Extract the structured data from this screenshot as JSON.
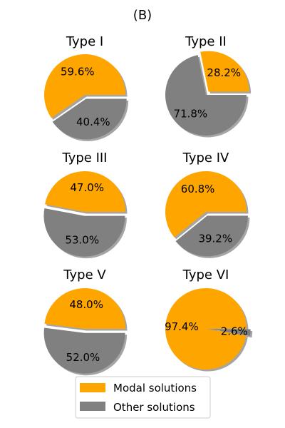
{
  "chart_data": {
    "type": "pie",
    "title": "(B)",
    "colors": {
      "modal": "#FFA500",
      "other": "#808080",
      "shadow": "#7f7f7f",
      "legend_border": "#cccccc"
    },
    "legend": {
      "placement": "bottom-center",
      "entries": [
        {
          "name": "Modal solutions",
          "color": "#FFA500"
        },
        {
          "name": "Other solutions",
          "color": "#808080"
        }
      ]
    },
    "charts": [
      {
        "title": "Type I",
        "labels": [
          "59.6%",
          "40.4%"
        ],
        "values": [
          59.6,
          40.4
        ],
        "explode": [
          0,
          0.1
        ]
      },
      {
        "title": "Type II",
        "labels": [
          "28.2%",
          "71.8%"
        ],
        "values": [
          28.2,
          71.8
        ],
        "explode": [
          0.1,
          0
        ]
      },
      {
        "title": "Type III",
        "labels": [
          "47.0%",
          "53.0%"
        ],
        "values": [
          47.0,
          53.0
        ],
        "explode": [
          0,
          0.1
        ]
      },
      {
        "title": "Type IV",
        "labels": [
          "60.8%",
          "39.2%"
        ],
        "values": [
          60.8,
          39.2
        ],
        "explode": [
          0,
          0.1
        ]
      },
      {
        "title": "Type V",
        "labels": [
          "48.0%",
          "52.0%"
        ],
        "values": [
          48.0,
          52.0
        ],
        "explode": [
          0,
          0.1
        ]
      },
      {
        "title": "Type VI",
        "labels": [
          "97.4%",
          "2.6%"
        ],
        "values": [
          97.4,
          2.6
        ],
        "explode": [
          0,
          0.1
        ]
      }
    ]
  }
}
